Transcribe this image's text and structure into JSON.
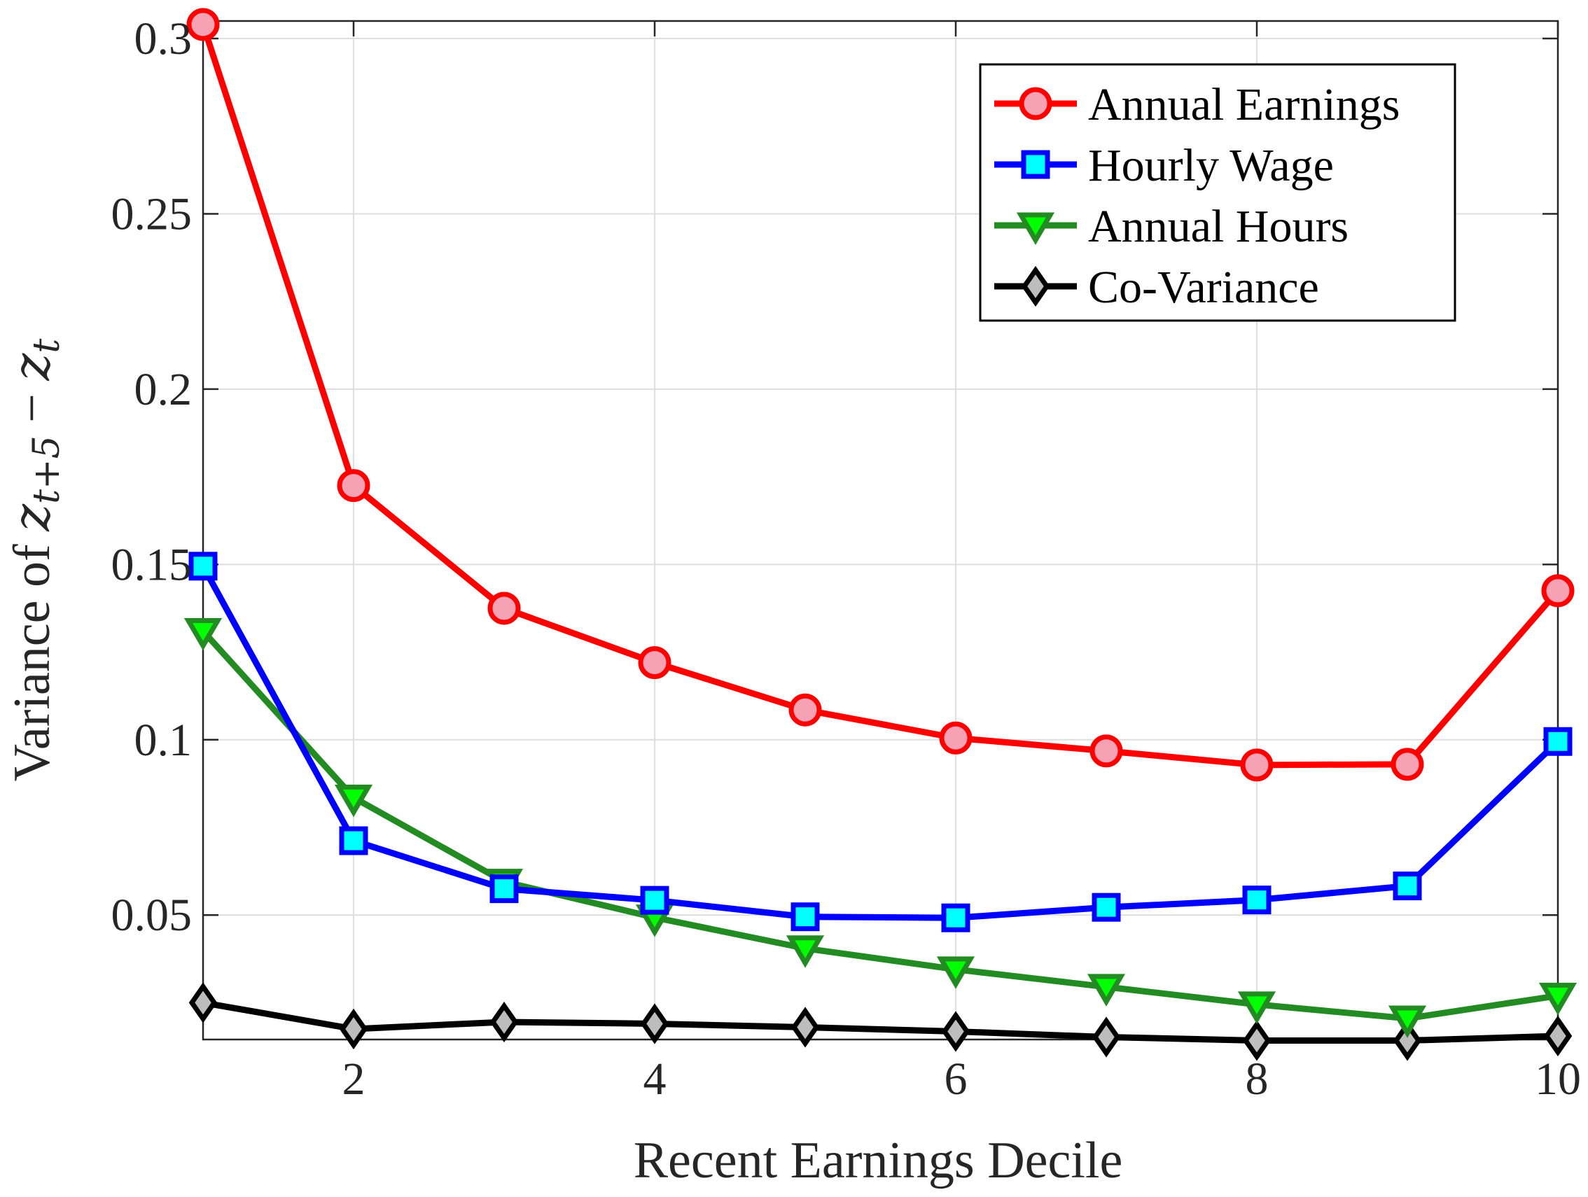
{
  "chart_data": {
    "type": "line",
    "title": "",
    "xlabel": "Recent Earnings Decile",
    "ylabel": {
      "prefix": "Variance of ",
      "z1": "z",
      "sub1": "t+5",
      "minus": " − ",
      "z2": "z",
      "sub2": "t"
    },
    "xlim": [
      1,
      10
    ],
    "ylim": [
      0.0145,
      0.305
    ],
    "xticks": [
      2,
      4,
      6,
      8,
      10
    ],
    "xtick_labels": [
      "2",
      "4",
      "6",
      "8",
      "10"
    ],
    "yticks": [
      0.05,
      0.1,
      0.15,
      0.2,
      0.25,
      0.3
    ],
    "ytick_labels": [
      "0.05",
      "0.1",
      "0.15",
      "0.2",
      "0.25",
      "0.3"
    ],
    "grid": true,
    "legend_position": "top-right",
    "x": [
      1,
      2,
      3,
      4,
      5,
      6,
      7,
      8,
      9,
      10
    ],
    "series": [
      {
        "name": "Annual Earnings",
        "values": [
          0.304,
          0.1725,
          0.1375,
          0.122,
          0.1085,
          0.1005,
          0.0968,
          0.0928,
          0.093,
          0.1425
        ],
        "color": "#ff0000",
        "marker": "circle",
        "marker_fill": "#f7a1b5"
      },
      {
        "name": "Hourly Wage",
        "values": [
          0.1495,
          0.0712,
          0.0575,
          0.0542,
          0.0495,
          0.0492,
          0.0522,
          0.0543,
          0.0583,
          0.0995
        ],
        "color": "#0000ff",
        "marker": "square",
        "marker_fill": "#00ffff"
      },
      {
        "name": "Annual Hours",
        "values": [
          0.131,
          0.0835,
          0.0595,
          0.0493,
          0.0405,
          0.0345,
          0.0295,
          0.0245,
          0.0205,
          0.027
        ],
        "color": "#228b22",
        "marker": "triangle-down",
        "marker_fill": "#00ff00"
      },
      {
        "name": "Co-Variance",
        "values": [
          0.025,
          0.0175,
          0.0195,
          0.019,
          0.018,
          0.0168,
          0.0152,
          0.0142,
          0.0142,
          0.0155
        ],
        "color": "#000000",
        "marker": "diamond",
        "marker_fill": "#bdbdbd"
      }
    ]
  }
}
